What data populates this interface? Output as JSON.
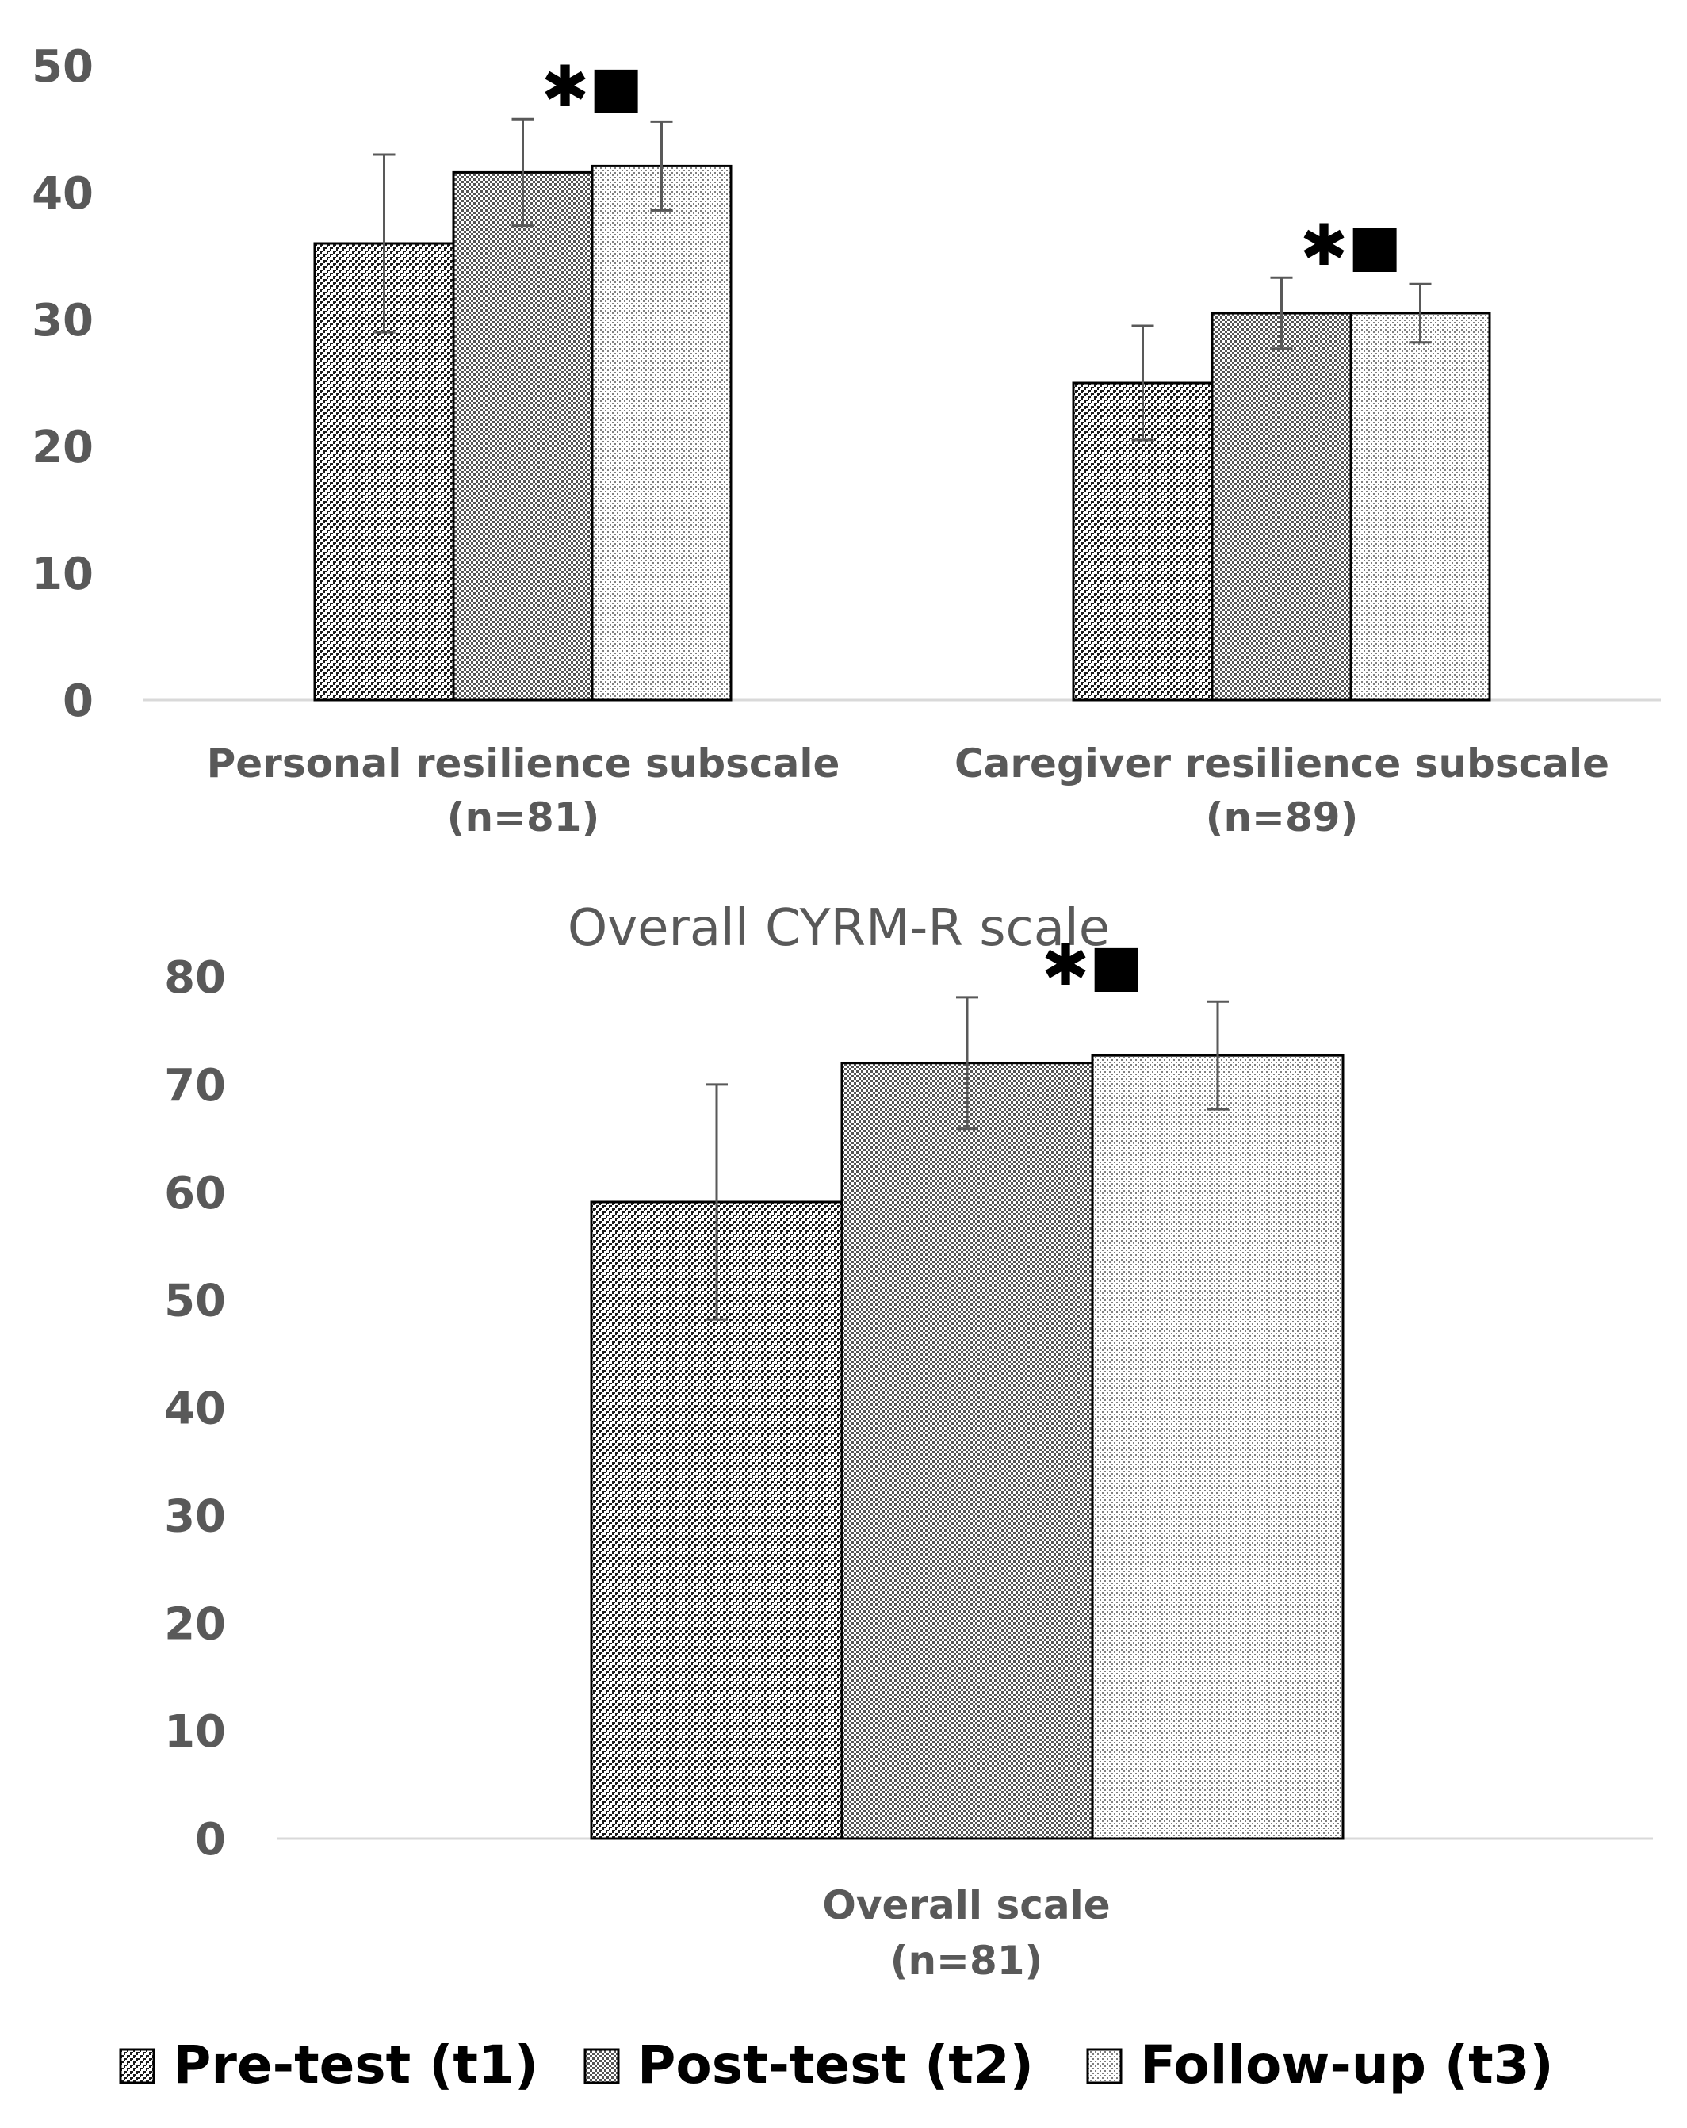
{
  "chart_data": [
    {
      "type": "bar",
      "title": "",
      "xlabel": "",
      "ylabel": "",
      "ylim": [
        0,
        50
      ],
      "yticks": [
        "0",
        "10",
        "20",
        "30",
        "40",
        "50"
      ],
      "grid": false,
      "categories": [
        {
          "line1": "Personal resilience subscale",
          "line2": "(n=81)"
        },
        {
          "line1": "Caregiver resilience subscale",
          "line2": "(n=89)"
        }
      ],
      "series": [
        {
          "name": "Pre-test (t1)",
          "values": [
            36,
            25
          ],
          "errors": [
            7,
            4.5
          ]
        },
        {
          "name": "Post-test (t2)",
          "values": [
            41.6,
            30.5
          ],
          "errors": [
            4.2,
            2.8
          ]
        },
        {
          "name": "Follow-up (t3)",
          "values": [
            42.1,
            30.5
          ],
          "errors": [
            3.5,
            2.3
          ]
        }
      ],
      "significance": [
        "✱■",
        "✱■"
      ]
    },
    {
      "type": "bar",
      "title": "Overall CYRM-R scale",
      "xlabel": "",
      "ylabel": "",
      "ylim": [
        0,
        80
      ],
      "yticks": [
        "0",
        "10",
        "20",
        "30",
        "40",
        "50",
        "60",
        "70",
        "80"
      ],
      "grid": false,
      "categories": [
        {
          "line1": "Overall scale",
          "line2": "(n=81)"
        }
      ],
      "series": [
        {
          "name": "Pre-test (t1)",
          "values": [
            59.1
          ],
          "errors": [
            10.9
          ]
        },
        {
          "name": "Post-test (t2)",
          "values": [
            72.0
          ],
          "errors": [
            6.1
          ]
        },
        {
          "name": "Follow-up (t3)",
          "values": [
            72.7
          ],
          "errors": [
            5.0
          ]
        }
      ],
      "significance": [
        "✱■"
      ]
    }
  ],
  "legend": {
    "placement": "bottom",
    "items": [
      "Pre-test (t1)",
      "Post-test (t2)",
      "Follow-up (t3)"
    ]
  },
  "colors": {
    "axis": "#d9d9d9",
    "text": "#595959",
    "bar_border": "#000000",
    "error_bar": "#595959"
  }
}
